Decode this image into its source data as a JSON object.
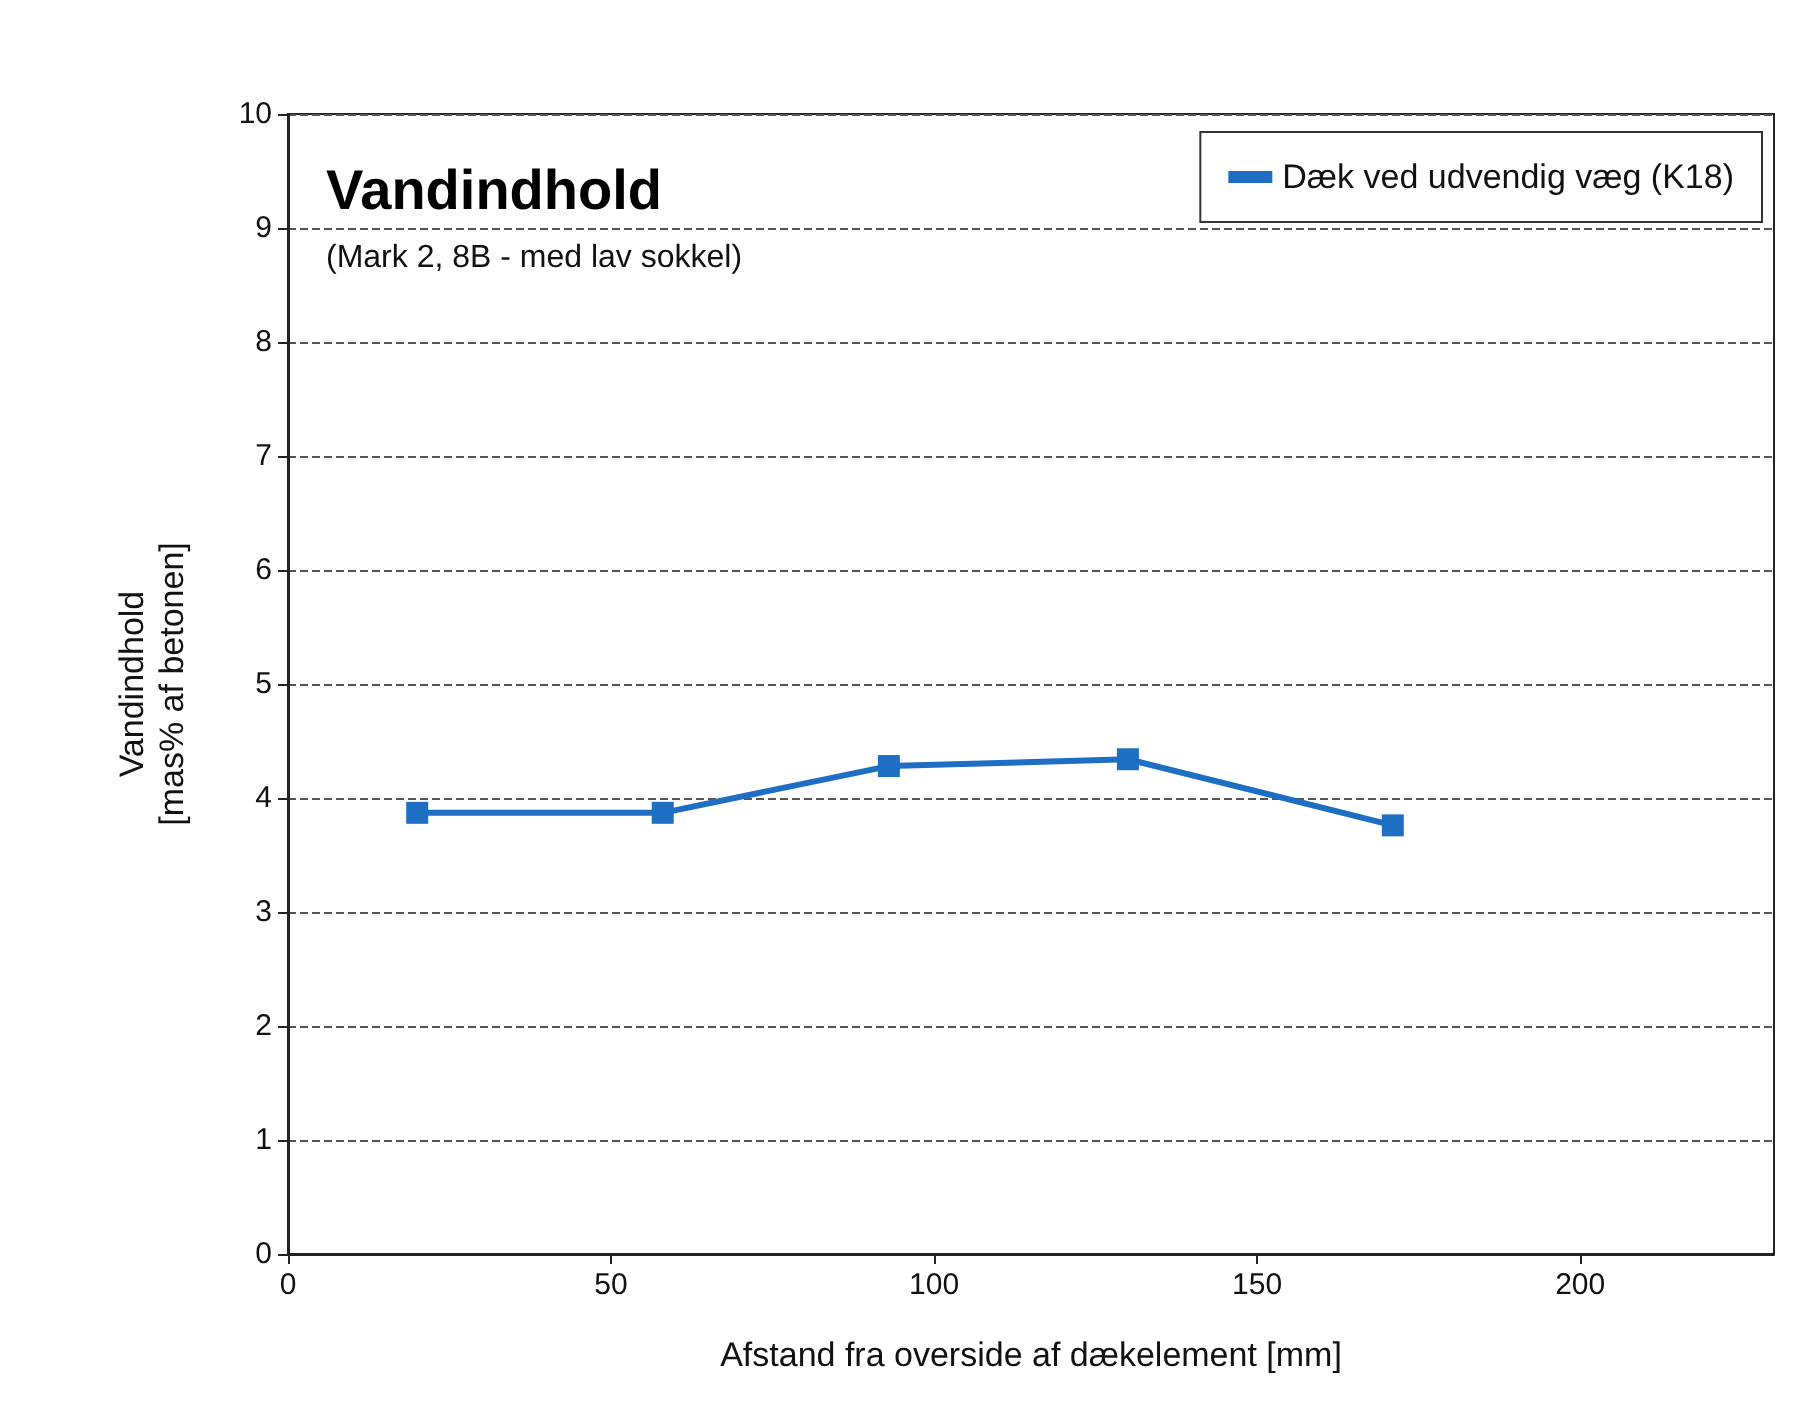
{
  "chart_data": {
    "type": "line",
    "title": "Vandindhold",
    "subtitle": "(Mark 2, 8B - med lav sokkel)",
    "xlabel": "Afstand fra overside af dækelement [mm]",
    "ylabel": "Vandindhold\n[mas% af betonen]",
    "x": [
      20,
      58,
      93,
      130,
      171
    ],
    "series": [
      {
        "name": "Dæk ved udvendig væg (K18)",
        "color": "#1e6fc4",
        "values": [
          3.87,
          3.87,
          4.28,
          4.34,
          3.76
        ]
      }
    ],
    "xlim": [
      0,
      230
    ],
    "xticks": [
      0,
      50,
      100,
      150,
      200
    ],
    "ylim": [
      0,
      10
    ],
    "yticks": [
      0,
      1,
      2,
      3,
      4,
      5,
      6,
      7,
      8,
      9,
      10
    ],
    "grid": "y",
    "legend": "top right",
    "marker": "square",
    "line_style": "solid"
  }
}
